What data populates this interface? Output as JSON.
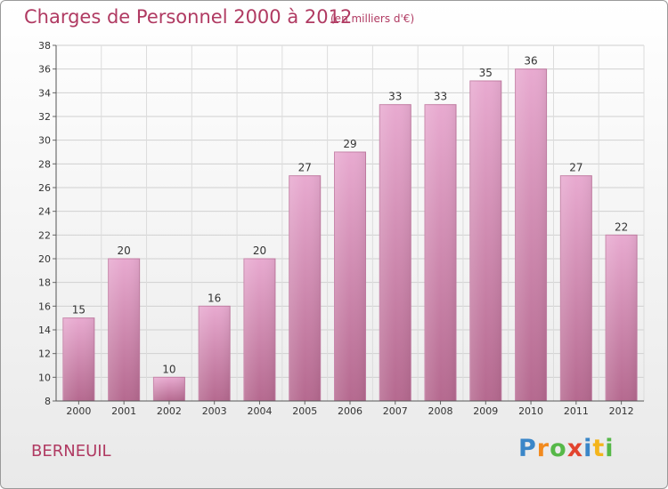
{
  "header": {
    "title": "Charges de Personnel 2000 à 2012",
    "subtitle": "(en milliers d'€)"
  },
  "footer": {
    "commune": "BERNEUIL",
    "logo": {
      "p": "P",
      "r": "r",
      "o": "o",
      "x": "x",
      "i": "i",
      "t": "t",
      "i2": "i"
    }
  },
  "colors": {
    "title": "#b03a62",
    "bar_top": "#e8aad0",
    "bar_bottom": "#b5698f",
    "background_bottom": "#e9e9e9"
  },
  "chart_data": {
    "type": "bar",
    "title": "Charges de Personnel 2000 à 2012",
    "subtitle": "(en milliers d'€)",
    "categories": [
      "2000",
      "2001",
      "2002",
      "2003",
      "2004",
      "2005",
      "2006",
      "2007",
      "2008",
      "2009",
      "2010",
      "2011",
      "2012"
    ],
    "values": [
      15,
      20,
      10,
      16,
      20,
      27,
      29,
      33,
      33,
      35,
      36,
      27,
      22
    ],
    "ylim": [
      8,
      38
    ],
    "yticks": [
      8,
      10,
      12,
      14,
      16,
      18,
      20,
      22,
      24,
      26,
      28,
      30,
      32,
      34,
      36,
      38
    ],
    "grid": true,
    "data_labels": true
  }
}
